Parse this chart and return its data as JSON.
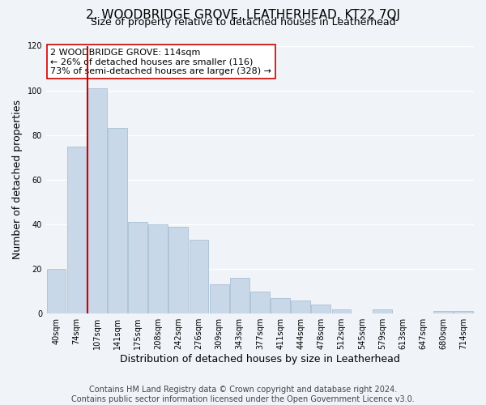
{
  "title": "2, WOODBRIDGE GROVE, LEATHERHEAD, KT22 7QJ",
  "subtitle": "Size of property relative to detached houses in Leatherhead",
  "xlabel": "Distribution of detached houses by size in Leatherhead",
  "ylabel": "Number of detached properties",
  "bar_labels": [
    "40sqm",
    "74sqm",
    "107sqm",
    "141sqm",
    "175sqm",
    "208sqm",
    "242sqm",
    "276sqm",
    "309sqm",
    "343sqm",
    "377sqm",
    "411sqm",
    "444sqm",
    "478sqm",
    "512sqm",
    "545sqm",
    "579sqm",
    "613sqm",
    "647sqm",
    "680sqm",
    "714sqm"
  ],
  "bar_values": [
    20,
    75,
    101,
    83,
    41,
    40,
    39,
    33,
    13,
    16,
    10,
    7,
    6,
    4,
    2,
    0,
    2,
    0,
    0,
    1,
    1
  ],
  "bar_color": "#c8d8e8",
  "bar_edge_color": "#a0b8d0",
  "vline_x_index": 2,
  "vline_color": "#cc0000",
  "annotation_lines": [
    "2 WOODBRIDGE GROVE: 114sqm",
    "← 26% of detached houses are smaller (116)",
    "73% of semi-detached houses are larger (328) →"
  ],
  "annotation_box_color": "#ffffff",
  "annotation_box_edgecolor": "#cc0000",
  "ylim": [
    0,
    120
  ],
  "yticks": [
    0,
    20,
    40,
    60,
    80,
    100,
    120
  ],
  "footer_lines": [
    "Contains HM Land Registry data © Crown copyright and database right 2024.",
    "Contains public sector information licensed under the Open Government Licence v3.0."
  ],
  "background_color": "#f0f4f8",
  "grid_color": "#ffffff",
  "title_fontsize": 11,
  "subtitle_fontsize": 9,
  "tick_fontsize": 7,
  "label_fontsize": 9,
  "footer_fontsize": 7,
  "annotation_fontsize": 8
}
